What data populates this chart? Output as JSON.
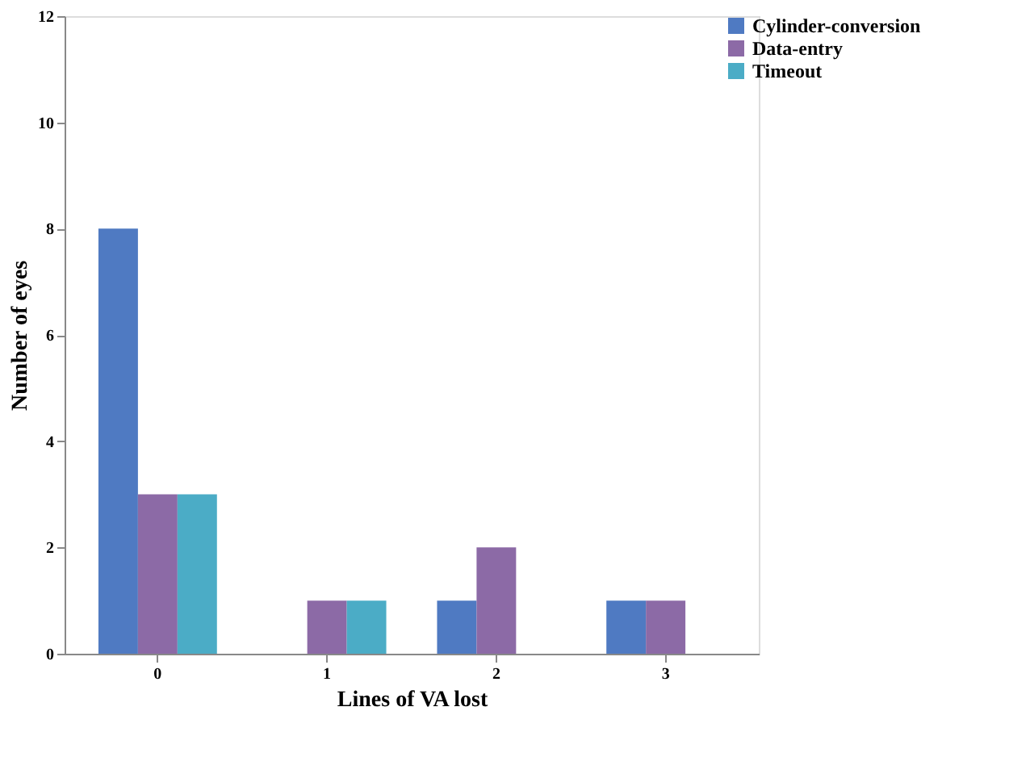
{
  "chart_data": {
    "type": "bar",
    "xlabel": "Lines of VA lost",
    "ylabel": "Number of eyes",
    "categories": [
      "0",
      "1",
      "2",
      "3"
    ],
    "series": [
      {
        "name": "Cylinder-conversion",
        "color": "#4f7ac2",
        "values": [
          8,
          0,
          1,
          1
        ]
      },
      {
        "name": "Data-entry",
        "color": "#8c6aa6",
        "values": [
          3,
          1,
          2,
          1
        ]
      },
      {
        "name": "Timeout",
        "color": "#4bacc6",
        "values": [
          3,
          1,
          0,
          0
        ]
      }
    ],
    "ylim": [
      0,
      12
    ],
    "yticks": [
      0,
      2,
      4,
      6,
      8,
      10,
      12
    ],
    "grid": false,
    "legend": "right"
  }
}
